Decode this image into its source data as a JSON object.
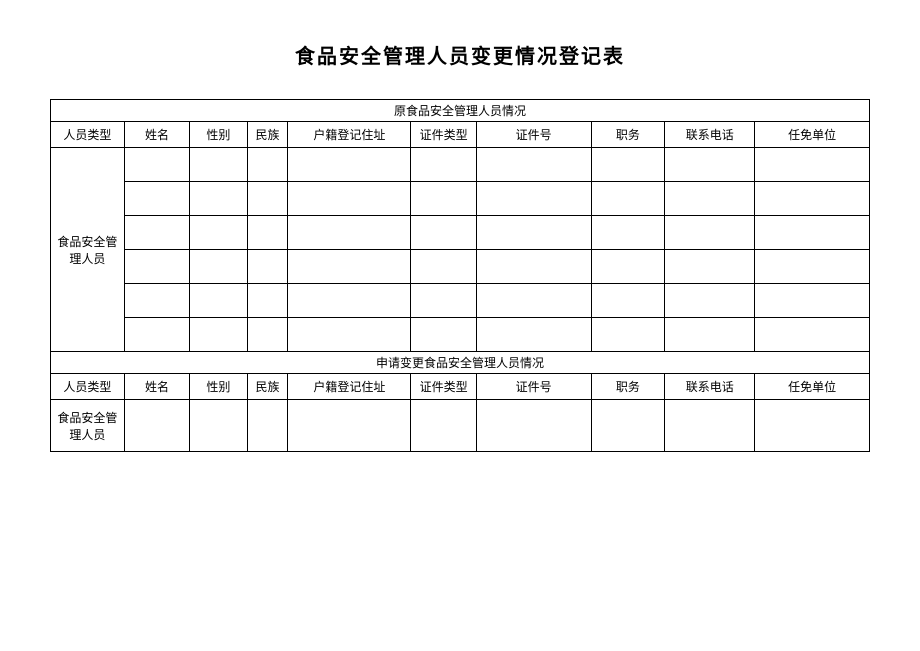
{
  "title": "食品安全管理人员变更情况登记表",
  "section1": {
    "header": "原食品安全管理人员情况",
    "rowLabel": "食品安全管理人员",
    "dataRows": 6
  },
  "section2": {
    "header": "申请变更食品安全管理人员情况",
    "rowLabel": "食品安全管理人员",
    "dataRows": 1
  },
  "columns": {
    "c1": "人员类型",
    "c2": "姓名",
    "c3": "性别",
    "c4": "民族",
    "c5": "户籍登记住址",
    "c6": "证件类型",
    "c7": "证件号",
    "c8": "职务",
    "c9": "联系电话",
    "c10": "任免单位"
  },
  "colWidths": {
    "c1": "9%",
    "c2": "8%",
    "c3": "7%",
    "c4": "5%",
    "c5": "15%",
    "c6": "8%",
    "c7": "14%",
    "c8": "9%",
    "c9": "11%",
    "c10": "14%"
  }
}
